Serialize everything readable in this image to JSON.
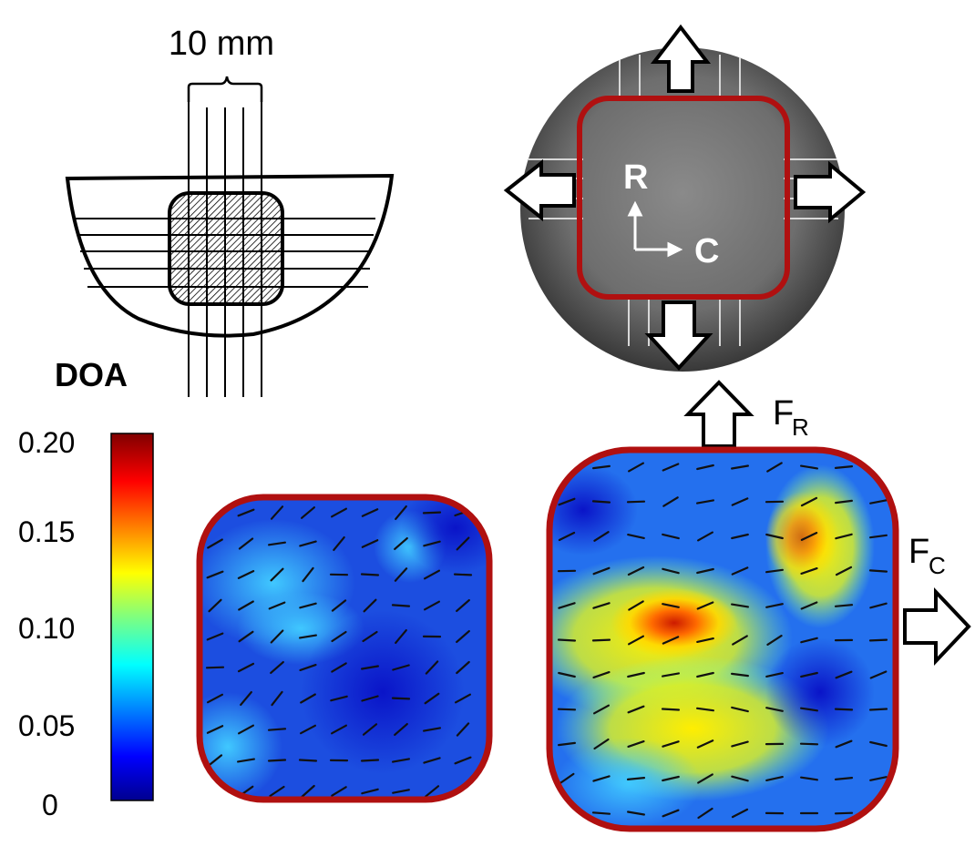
{
  "scale_label": "10 mm",
  "doa_label": "DOA",
  "colorbar": {
    "ticks": [
      "0.20",
      "0.15",
      "0.10",
      "0.05",
      "0"
    ],
    "range": [
      0,
      0.2
    ],
    "colormap": "jet"
  },
  "photo": {
    "axis_r_label": "R",
    "axis_c_label": "C"
  },
  "forces": {
    "fr_main": "F",
    "fr_sub": "R",
    "fc_main": "F",
    "fc_sub": "C"
  },
  "colors": {
    "outline": "#b01010",
    "arrow_stroke": "#000000",
    "arrow_fill": "#ffffff"
  }
}
